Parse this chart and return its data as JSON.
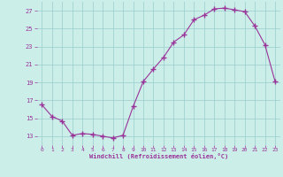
{
  "x": [
    0,
    1,
    2,
    3,
    4,
    5,
    6,
    7,
    8,
    9,
    10,
    11,
    12,
    13,
    14,
    15,
    16,
    17,
    18,
    19,
    20,
    21,
    22,
    23
  ],
  "y": [
    16.5,
    15.2,
    14.7,
    13.1,
    13.3,
    13.2,
    13.0,
    12.8,
    13.1,
    16.3,
    19.1,
    20.5,
    21.8,
    23.5,
    24.3,
    26.0,
    26.5,
    27.2,
    27.3,
    27.1,
    26.9,
    25.3,
    23.2,
    19.1
  ],
  "xlabel": "Windchill (Refroidissement éolien,°C)",
  "line_color": "#993399",
  "marker": "+",
  "marker_size": 4,
  "bg_color": "#cceee8",
  "grid_color": "#99cccc",
  "tick_color": "#993399",
  "label_color": "#993399",
  "xlim": [
    -0.5,
    23.5
  ],
  "ylim": [
    12.0,
    28.0
  ],
  "yticks": [
    13,
    15,
    17,
    19,
    21,
    23,
    25,
    27
  ],
  "xticks": [
    0,
    1,
    2,
    3,
    4,
    5,
    6,
    7,
    8,
    9,
    10,
    11,
    12,
    13,
    14,
    15,
    16,
    17,
    18,
    19,
    20,
    21,
    22,
    23
  ]
}
